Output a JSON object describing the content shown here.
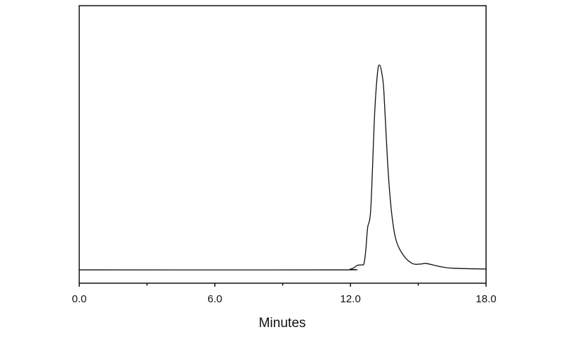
{
  "chart_data": {
    "type": "line",
    "title": "",
    "xlabel": "Minutes",
    "ylabel": "",
    "xlim": [
      0,
      18
    ],
    "ylim": [
      0,
      1
    ],
    "grid": false,
    "y_axis_ticks": false,
    "x_major_ticks": [
      0,
      6,
      12,
      18
    ],
    "x_tick_labels": [
      "0.0",
      "6.0",
      "12.0",
      "18.0"
    ],
    "x_minor_ticks": [
      3,
      9,
      15
    ],
    "line_color": "#111111",
    "series": [
      {
        "x": [
          0,
          11.2,
          12.0,
          12.3,
          12.5,
          12.6,
          12.68,
          12.76,
          12.9,
          13.07,
          13.2,
          13.29,
          13.38,
          13.48,
          13.64,
          13.8,
          14.0,
          14.33,
          14.74,
          15.1,
          15.36,
          15.9,
          16.5,
          18
        ],
        "y": [
          0.048,
          0.048,
          0.051,
          0.064,
          0.066,
          0.071,
          0.12,
          0.2,
          0.27,
          0.61,
          0.76,
          0.786,
          0.76,
          0.69,
          0.44,
          0.27,
          0.161,
          0.102,
          0.071,
          0.069,
          0.071,
          0.061,
          0.054,
          0.051
        ]
      }
    ]
  }
}
